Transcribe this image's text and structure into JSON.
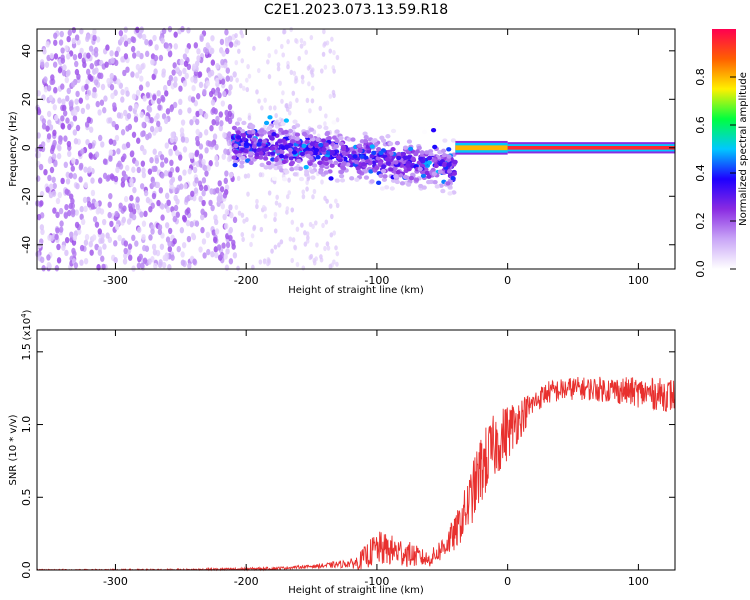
{
  "title": "C2E1.2023.073.13.59.R18",
  "chart_data": [
    {
      "type": "heatmap",
      "xlabel": "Height of straight line (km)",
      "ylabel": "Frequency (Hz)",
      "xlim": [
        -360,
        128
      ],
      "ylim": [
        -50,
        49
      ],
      "x_ticks": [
        -300,
        -200,
        -100,
        0,
        100
      ],
      "y_ticks": [
        -40,
        -20,
        0,
        20,
        40
      ],
      "colorbar": {
        "label": "Normalized spectral amplitude",
        "range": [
          0,
          1
        ],
        "ticks": [
          0.0,
          0.2,
          0.4,
          0.6,
          0.8
        ],
        "colormap": [
          "#ffffff",
          "#c9a6f7",
          "#8a2be2",
          "#1e00ff",
          "#00c8ff",
          "#00ff40",
          "#fff000",
          "#ff6000",
          "#ff0050"
        ]
      },
      "regions": [
        {
          "x_range": [
            -360,
            -208
          ],
          "freq_range": [
            -50,
            49
          ],
          "amplitude": 0.08,
          "pattern": "scattered noise"
        },
        {
          "x_range": [
            -208,
            -130
          ],
          "freq_range": [
            -50,
            49
          ],
          "amplitude": 0.02,
          "pattern": "sparse faint noise"
        },
        {
          "x_range": [
            -210,
            -40
          ],
          "freq_center_start": 2,
          "freq_center_end": -8,
          "bandwidth": 8,
          "amplitude": 0.3,
          "pattern": "broadened band"
        },
        {
          "x_range": [
            -40,
            0
          ],
          "freq_center": 0,
          "bandwidth": 2,
          "amplitude": 0.8,
          "pattern": "narrow line"
        },
        {
          "x_range": [
            0,
            128
          ],
          "freq_center": 0,
          "bandwidth": 1.5,
          "amplitude": 0.95,
          "pattern": "narrow line"
        }
      ]
    },
    {
      "type": "line",
      "xlabel": "Height of straight line (km)",
      "ylabel": "SNR (10 * v/v)",
      "y_exponent_label": "(x10",
      "y_exponent_sup": "4",
      "y_exponent_close": ")",
      "xlim": [
        -360,
        128
      ],
      "ylim": [
        0,
        1.65
      ],
      "x_ticks": [
        -300,
        -200,
        -100,
        0,
        100
      ],
      "y_ticks": [
        0.0,
        0.5,
        1.0,
        1.5
      ],
      "series_color": "#e8302e",
      "trend": {
        "x": [
          -360,
          -250,
          -180,
          -140,
          -115,
          -100,
          -80,
          -60,
          -50,
          -40,
          -30,
          -20,
          -10,
          0,
          10,
          20,
          30,
          50,
          80,
          100,
          128
        ],
        "y": [
          0.0,
          0.0,
          0.01,
          0.03,
          0.05,
          0.15,
          0.12,
          0.07,
          0.15,
          0.25,
          0.45,
          0.7,
          0.85,
          0.95,
          1.05,
          1.15,
          1.22,
          1.25,
          1.24,
          1.22,
          1.2
        ]
      },
      "noise_amplitude": {
        "x": [
          -360,
          -150,
          -120,
          -100,
          -80,
          -60,
          -40,
          -20,
          0,
          20,
          60,
          128
        ],
        "y": [
          0.005,
          0.01,
          0.03,
          0.12,
          0.1,
          0.05,
          0.12,
          0.25,
          0.2,
          0.08,
          0.08,
          0.12
        ]
      }
    }
  ]
}
